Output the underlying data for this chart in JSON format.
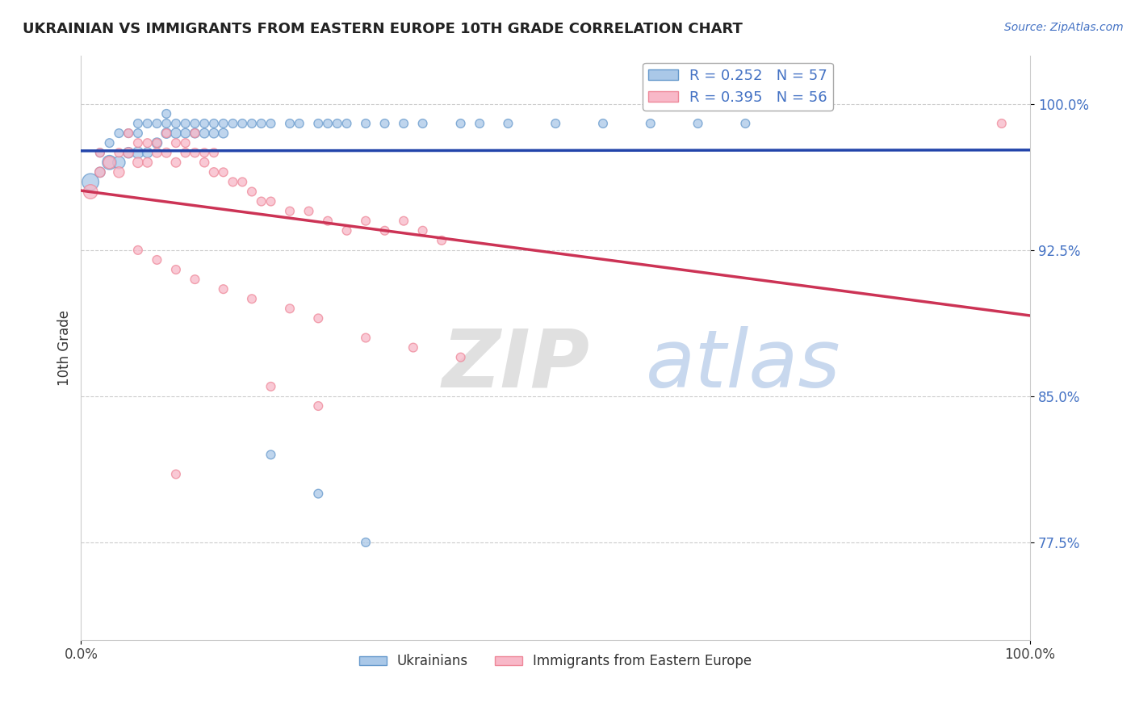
{
  "title": "UKRAINIAN VS IMMIGRANTS FROM EASTERN EUROPE 10TH GRADE CORRELATION CHART",
  "source": "Source: ZipAtlas.com",
  "ylabel": "10th Grade",
  "xlim": [
    0.0,
    1.0
  ],
  "ylim": [
    0.725,
    1.025
  ],
  "yticks": [
    0.775,
    0.85,
    0.925,
    1.0
  ],
  "ytick_labels": [
    "77.5%",
    "85.0%",
    "92.5%",
    "100.0%"
  ],
  "title_color": "#222222",
  "source_color": "#4472c4",
  "blue_line_color": "#2244aa",
  "pink_line_color": "#cc3355",
  "blue_scatter_x": [
    0.01,
    0.02,
    0.02,
    0.03,
    0.03,
    0.04,
    0.04,
    0.05,
    0.05,
    0.06,
    0.06,
    0.06,
    0.07,
    0.07,
    0.08,
    0.08,
    0.09,
    0.09,
    0.09,
    0.1,
    0.1,
    0.11,
    0.11,
    0.12,
    0.12,
    0.13,
    0.13,
    0.14,
    0.14,
    0.15,
    0.15,
    0.16,
    0.17,
    0.18,
    0.19,
    0.2,
    0.22,
    0.23,
    0.25,
    0.26,
    0.27,
    0.28,
    0.3,
    0.32,
    0.34,
    0.36,
    0.4,
    0.42,
    0.45,
    0.5,
    0.55,
    0.6,
    0.65,
    0.7,
    0.2,
    0.25,
    0.3
  ],
  "blue_scatter_y": [
    0.96,
    0.965,
    0.975,
    0.97,
    0.98,
    0.97,
    0.985,
    0.975,
    0.985,
    0.975,
    0.985,
    0.99,
    0.975,
    0.99,
    0.98,
    0.99,
    0.985,
    0.99,
    0.995,
    0.985,
    0.99,
    0.985,
    0.99,
    0.985,
    0.99,
    0.985,
    0.99,
    0.985,
    0.99,
    0.985,
    0.99,
    0.99,
    0.99,
    0.99,
    0.99,
    0.99,
    0.99,
    0.99,
    0.99,
    0.99,
    0.99,
    0.99,
    0.99,
    0.99,
    0.99,
    0.99,
    0.99,
    0.99,
    0.99,
    0.99,
    0.99,
    0.99,
    0.99,
    0.99,
    0.82,
    0.8,
    0.775
  ],
  "blue_scatter_size": [
    220,
    80,
    60,
    160,
    60,
    120,
    60,
    90,
    60,
    100,
    60,
    60,
    80,
    60,
    80,
    60,
    80,
    60,
    60,
    80,
    60,
    70,
    60,
    70,
    60,
    70,
    60,
    70,
    60,
    70,
    60,
    60,
    60,
    60,
    60,
    60,
    60,
    60,
    60,
    60,
    60,
    60,
    60,
    60,
    60,
    60,
    60,
    60,
    60,
    60,
    60,
    60,
    60,
    60,
    60,
    60,
    60
  ],
  "pink_scatter_x": [
    0.01,
    0.02,
    0.02,
    0.03,
    0.04,
    0.04,
    0.05,
    0.05,
    0.06,
    0.06,
    0.07,
    0.07,
    0.08,
    0.08,
    0.09,
    0.09,
    0.1,
    0.1,
    0.11,
    0.11,
    0.12,
    0.12,
    0.13,
    0.13,
    0.14,
    0.14,
    0.15,
    0.16,
    0.17,
    0.18,
    0.19,
    0.2,
    0.22,
    0.24,
    0.26,
    0.28,
    0.3,
    0.32,
    0.34,
    0.36,
    0.38,
    0.06,
    0.08,
    0.1,
    0.12,
    0.15,
    0.18,
    0.22,
    0.25,
    0.3,
    0.35,
    0.4,
    0.2,
    0.25,
    0.97,
    0.1
  ],
  "pink_scatter_y": [
    0.955,
    0.965,
    0.975,
    0.97,
    0.965,
    0.975,
    0.975,
    0.985,
    0.97,
    0.98,
    0.97,
    0.98,
    0.975,
    0.98,
    0.975,
    0.985,
    0.97,
    0.98,
    0.975,
    0.98,
    0.975,
    0.985,
    0.97,
    0.975,
    0.965,
    0.975,
    0.965,
    0.96,
    0.96,
    0.955,
    0.95,
    0.95,
    0.945,
    0.945,
    0.94,
    0.935,
    0.94,
    0.935,
    0.94,
    0.935,
    0.93,
    0.925,
    0.92,
    0.915,
    0.91,
    0.905,
    0.9,
    0.895,
    0.89,
    0.88,
    0.875,
    0.87,
    0.855,
    0.845,
    0.99,
    0.81
  ],
  "pink_scatter_size": [
    160,
    80,
    60,
    120,
    90,
    60,
    80,
    60,
    80,
    60,
    70,
    60,
    70,
    60,
    70,
    60,
    70,
    60,
    65,
    60,
    65,
    60,
    65,
    60,
    65,
    60,
    60,
    60,
    60,
    60,
    60,
    60,
    60,
    60,
    60,
    60,
    60,
    60,
    60,
    60,
    60,
    60,
    60,
    60,
    60,
    60,
    60,
    60,
    60,
    60,
    60,
    60,
    60,
    60,
    60,
    60
  ],
  "grid_color": "#cccccc",
  "legend_R_blue": "R = 0.252",
  "legend_N_blue": "N = 57",
  "legend_R_pink": "R = 0.395",
  "legend_N_pink": "N = 56"
}
